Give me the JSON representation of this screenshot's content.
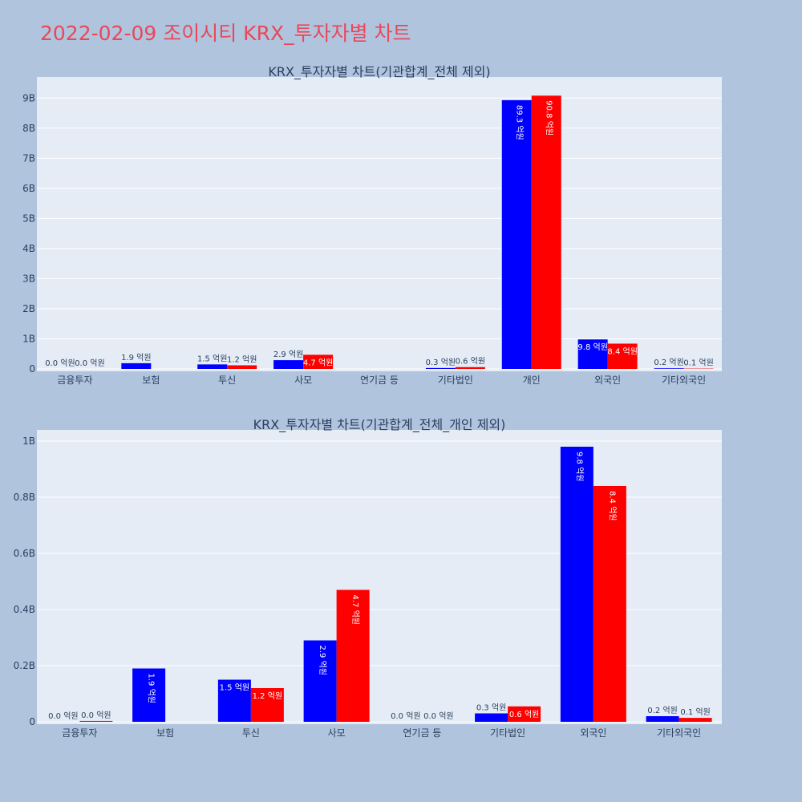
{
  "title": "2022-02-09 조이시티 KRX_투자자별 차트",
  "colors": {
    "series1": "#0000ff",
    "series2": "#ff0000",
    "accent_title": "#e8485a"
  },
  "chart_data": [
    {
      "type": "bar",
      "title": "KRX_투자자별 차트(기관합계_전체 제외)",
      "categories": [
        "금융투자",
        "보험",
        "투신",
        "사모",
        "연기금 등",
        "기타법인",
        "개인",
        "외국인",
        "기타외국인"
      ],
      "ylim": [
        0,
        9.7
      ],
      "yticks": [
        0,
        1,
        2,
        3,
        4,
        5,
        6,
        7,
        8,
        9
      ],
      "yticklabels": [
        "0",
        "1B",
        "2B",
        "3B",
        "4B",
        "5B",
        "6B",
        "7B",
        "8B",
        "9B"
      ],
      "series": [
        {
          "values": [
            0.0,
            0.19,
            0.15,
            0.29,
            0.0,
            0.03,
            8.93,
            0.98,
            0.02
          ],
          "labels": [
            "0.0 억원",
            "1.9 억원",
            "1.5 억원",
            "2.9 억원",
            "",
            "0.3 억원",
            "89.3 억원",
            "9.8 억원",
            "0.2 억원"
          ]
        },
        {
          "values": [
            0.0,
            0.0,
            0.12,
            0.47,
            0.0,
            0.06,
            9.08,
            0.84,
            0.01
          ],
          "labels": [
            "0.0 억원",
            "",
            "1.2 억원",
            "4.7 억원",
            "",
            "0.6 억원",
            "90.8 억원",
            "8.4 억원",
            "0.1 억원"
          ]
        }
      ],
      "grid": true
    },
    {
      "type": "bar",
      "title": "KRX_투자자별 차트(기관합계_전체_개인 제외)",
      "categories": [
        "금융투자",
        "보험",
        "투신",
        "사모",
        "연기금 등",
        "기타법인",
        "외국인",
        "기타외국인"
      ],
      "ylim": [
        0,
        1.04
      ],
      "yticks": [
        0,
        0.2,
        0.4,
        0.6,
        0.8,
        1.0
      ],
      "yticklabels": [
        "0",
        "0.2B",
        "0.4B",
        "0.6B",
        "0.8B",
        "1B"
      ],
      "series": [
        {
          "values": [
            0.0,
            0.19,
            0.15,
            0.29,
            0.0,
            0.03,
            0.98,
            0.02
          ],
          "labels": [
            "0.0 억원",
            "1.9 억원",
            "1.5 억원",
            "2.9 억원",
            "0.0 억원",
            "0.3 억원",
            "9.8 억원",
            "0.2 억원"
          ]
        },
        {
          "values": [
            0.003,
            0.0,
            0.12,
            0.47,
            0.0,
            0.055,
            0.84,
            0.014
          ],
          "labels": [
            "0.0 억원",
            "",
            "1.2 억원",
            "4.7 억원",
            "0.0 억원",
            "0.6 억원",
            "8.4 억원",
            "0.1 억원"
          ]
        }
      ],
      "grid": true
    }
  ]
}
